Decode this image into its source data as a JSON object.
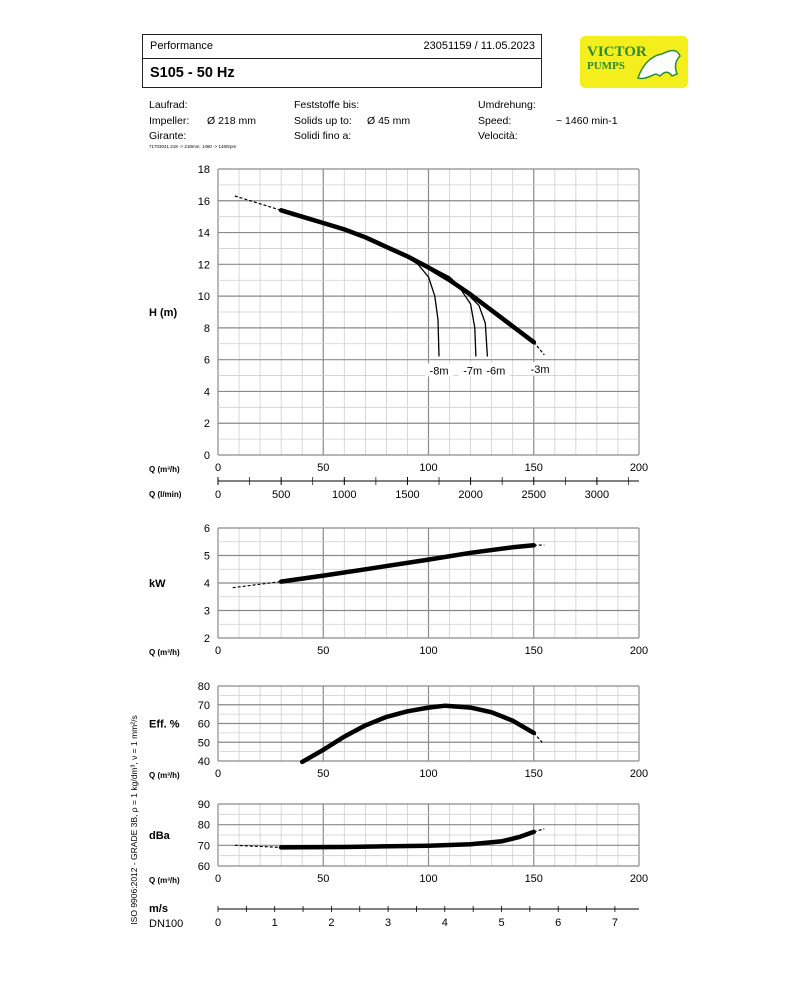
{
  "header": {
    "doc_type": "Performance",
    "ref": "23051159 /  11.05.2023",
    "title": "S105 - 50 Hz"
  },
  "logo": {
    "text_line1": "VICTOR",
    "text_line2": "PUMPS",
    "bg_color": "#f4ef1c",
    "text_color": "#2e8b3a"
  },
  "specs": {
    "impeller_labels": [
      "Laufrad:",
      "Impeller:",
      "Girante:"
    ],
    "impeller_value": "Ø 218 mm",
    "solids_labels": [
      "Feststoffe bis:",
      "Solids up to:",
      "Solidi fino a:"
    ],
    "solids_value": "Ø 45 mm",
    "speed_labels": [
      "Umdrehung:",
      "Speed:",
      "Velocità:"
    ],
    "speed_value": "~  1460 min-1",
    "footnote": "71703041 218 -> 218mm; 1460 -> 1460rpm"
  },
  "side_note": "ISO 9906:2012 - GRADE 3B, ρ = 1 kg/dm³, ν = 1 mm²/s",
  "chart_data": [
    {
      "type": "line",
      "ylabel": "H (m)",
      "xlabel": "Q (m³/h)",
      "xlim": [
        0,
        200
      ],
      "ylim": [
        0,
        18
      ],
      "xticks": [
        0,
        50,
        100,
        150,
        200
      ],
      "yticks": [
        0,
        2,
        4,
        6,
        8,
        10,
        12,
        14,
        16,
        18
      ],
      "grid": true,
      "secondary_x_axis": {
        "label": "Q (l/min)",
        "ticks": [
          0,
          500,
          1000,
          1500,
          2000,
          2500,
          3000
        ]
      },
      "series": [
        {
          "style": "thick",
          "x": [
            30,
            40,
            50,
            60,
            70,
            80,
            90,
            100,
            110,
            120,
            130,
            140,
            150
          ],
          "y": [
            15.4,
            15.0,
            14.6,
            14.2,
            13.7,
            13.1,
            12.5,
            11.8,
            11.0,
            10.1,
            9.1,
            8.1,
            7.1
          ]
        },
        {
          "style": "dashed",
          "x": [
            8,
            30
          ],
          "y": [
            16.3,
            15.4
          ]
        },
        {
          "style": "dashed",
          "x": [
            150,
            155
          ],
          "y": [
            7.1,
            6.3
          ]
        },
        {
          "style": "thin",
          "x": [
            88,
            95,
            100,
            103,
            104.5,
            105
          ],
          "y": [
            12.6,
            12.0,
            11.2,
            10.0,
            8.5,
            6.2
          ]
        },
        {
          "style": "thin",
          "x": [
            92,
            105,
            115,
            120,
            122,
            122.5
          ],
          "y": [
            12.4,
            11.5,
            10.5,
            9.5,
            8.0,
            6.2
          ]
        },
        {
          "style": "thin",
          "x": [
            100,
            110,
            118,
            124,
            127,
            128
          ],
          "y": [
            11.9,
            11.2,
            10.2,
            9.4,
            8.3,
            6.2
          ]
        }
      ],
      "annotations": [
        {
          "text": "-8m",
          "x": 105,
          "y": 5.2
        },
        {
          "text": "-7m",
          "x": 121,
          "y": 5.2
        },
        {
          "text": "-6m",
          "x": 132,
          "y": 5.2
        },
        {
          "text": "-3m",
          "x": 153,
          "y": 5.3
        }
      ]
    },
    {
      "type": "line",
      "ylabel": "kW",
      "xlabel": "Q (m³/h)",
      "xlim": [
        0,
        200
      ],
      "ylim": [
        2,
        6
      ],
      "xticks": [
        0,
        50,
        100,
        150,
        200
      ],
      "yticks": [
        2,
        3,
        4,
        5,
        6
      ],
      "grid": true,
      "series": [
        {
          "style": "dashed",
          "x": [
            7,
            30
          ],
          "y": [
            3.83,
            4.05
          ]
        },
        {
          "style": "thick",
          "x": [
            30,
            50,
            70,
            100,
            120,
            140,
            150
          ],
          "y": [
            4.05,
            4.27,
            4.5,
            4.85,
            5.1,
            5.3,
            5.37
          ]
        },
        {
          "style": "dashed",
          "x": [
            150,
            155
          ],
          "y": [
            5.37,
            5.38
          ]
        }
      ]
    },
    {
      "type": "line",
      "ylabel": "Eff. %",
      "xlabel": "Q (m³/h)",
      "xlim": [
        0,
        200
      ],
      "ylim": [
        40,
        80
      ],
      "xticks": [
        0,
        50,
        100,
        150,
        200
      ],
      "yticks": [
        40,
        50,
        60,
        70,
        80
      ],
      "grid": true,
      "series": [
        {
          "style": "thick",
          "x": [
            40,
            50,
            60,
            70,
            80,
            90,
            100,
            108,
            120,
            130,
            140,
            150
          ],
          "y": [
            39.5,
            46,
            53,
            59,
            63.5,
            66.5,
            68.5,
            69.5,
            68.5,
            66,
            61.5,
            55
          ]
        },
        {
          "style": "dashed",
          "x": [
            150,
            154
          ],
          "y": [
            55,
            50
          ]
        }
      ]
    },
    {
      "type": "line",
      "ylabel": "dBa",
      "xlabel": "Q (m³/h)",
      "xlim": [
        0,
        200
      ],
      "ylim": [
        60,
        90
      ],
      "xticks": [
        0,
        50,
        100,
        150,
        200
      ],
      "yticks": [
        60,
        70,
        80,
        90
      ],
      "grid": true,
      "series": [
        {
          "style": "dashed",
          "x": [
            8,
            30
          ],
          "y": [
            70,
            69
          ]
        },
        {
          "style": "thick",
          "x": [
            30,
            60,
            100,
            120,
            135,
            143,
            150
          ],
          "y": [
            69,
            69.2,
            69.8,
            70.5,
            72,
            74,
            76.5
          ]
        },
        {
          "style": "dashed",
          "x": [
            150,
            155
          ],
          "y": [
            76.5,
            78
          ]
        }
      ],
      "velocity_axis": {
        "label": "m/s",
        "sublabel": "DN100",
        "ticks": [
          0,
          1,
          2,
          3,
          4,
          5,
          6,
          7
        ]
      }
    }
  ]
}
